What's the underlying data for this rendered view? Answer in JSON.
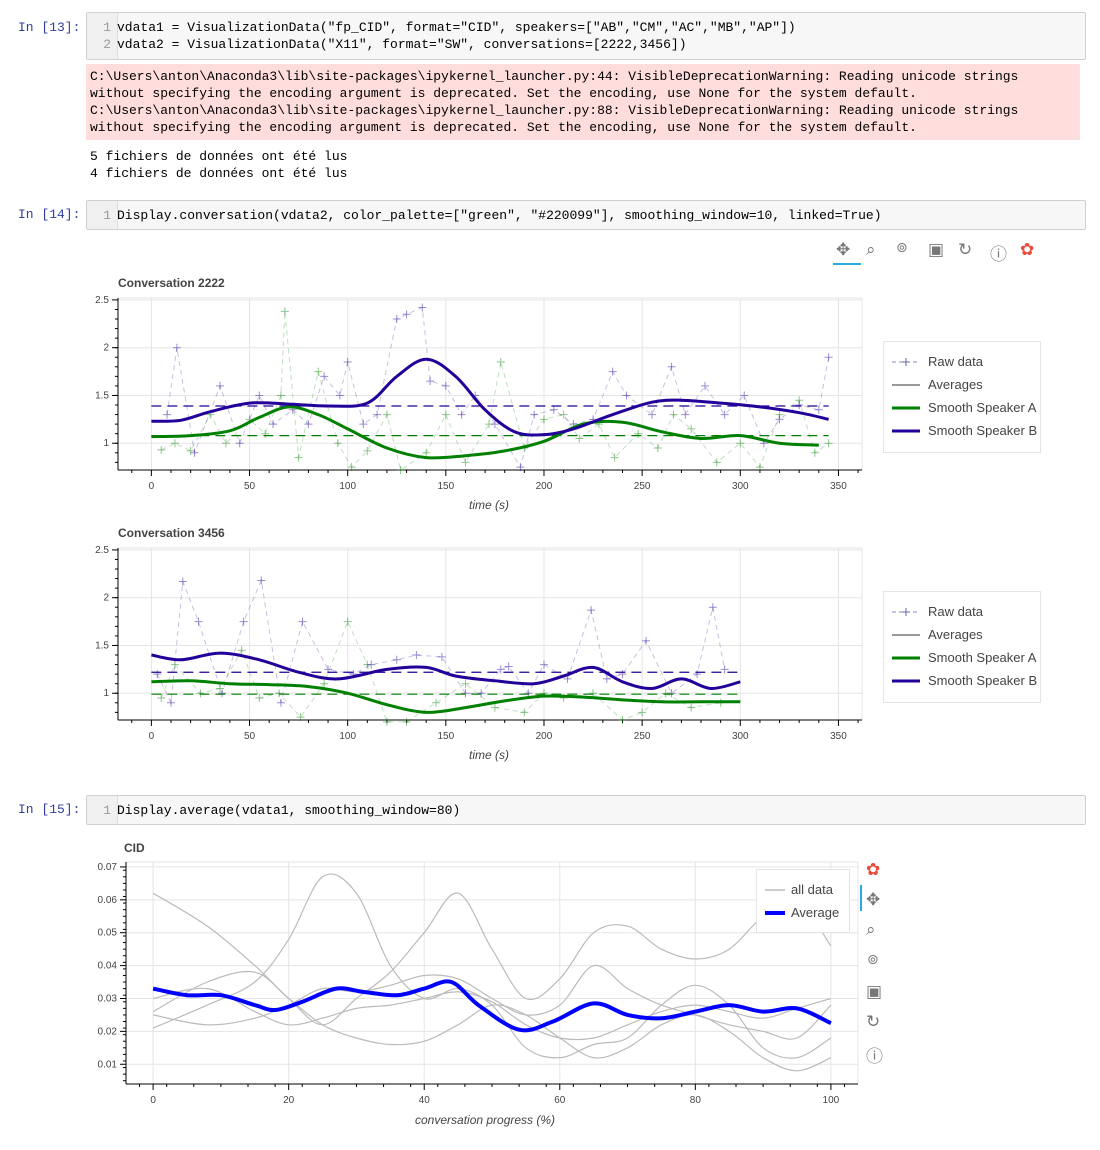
{
  "cells": [
    {
      "prompt": "In [13]:",
      "lines": [
        {
          "num": "1",
          "code": "vdata1 = VisualizationData(\"fp_CID\", format=\"CID\", speakers=[\"AB\",\"CM\",\"AC\",\"MB\",\"AP\"])"
        },
        {
          "num": "2",
          "code": "vdata2 = VisualizationData(\"X11\", format=\"SW\", conversations=[2222,3456])"
        }
      ],
      "stderr": "C:\\Users\\anton\\Anaconda3\\lib\\site-packages\\ipykernel_launcher.py:44: VisibleDeprecationWarning: Reading unicode strings without specifying the encoding argument is deprecated. Set the encoding, use None for the system default.\nC:\\Users\\anton\\Anaconda3\\lib\\site-packages\\ipykernel_launcher.py:88: VisibleDeprecationWarning: Reading unicode strings without specifying the encoding argument is deprecated. Set the encoding, use None for the system default.",
      "stdout": "5 fichiers de données ont été lus\n4 fichiers de données ont été lus"
    },
    {
      "prompt": "In [14]:",
      "lines": [
        {
          "num": "1",
          "code": "Display.conversation(vdata2, color_palette=[\"green\", \"#220099\"], smoothing_window=10, linked=True)"
        }
      ]
    },
    {
      "prompt": "In [15]:",
      "lines": [
        {
          "num": "1",
          "code": "Display.average(vdata1, smoothing_window=80)"
        }
      ]
    }
  ],
  "toolbar_icons": [
    "pan-icon",
    "box-zoom-icon",
    "wheel-zoom-icon",
    "save-icon",
    "reset-icon",
    "help-icon",
    "bokeh-logo-icon"
  ],
  "colors": {
    "speaker_a": "#008000",
    "speaker_b": "#220099",
    "average": "#0000ff",
    "all_data": "#bbbbbb",
    "stderr_bg": "#ffdddd",
    "prompt": "#303f9f"
  },
  "legend_conversation": {
    "raw": "Raw data",
    "averages": "Averages",
    "speaker_a": "Smooth Speaker A",
    "speaker_b": "Smooth Speaker B"
  },
  "legend_average": {
    "all": "all data",
    "average": "Average"
  },
  "chart_data": [
    {
      "type": "line",
      "title": "Conversation 2222",
      "xlabel": "time (s)",
      "ylabel": "",
      "xlim": [
        -17,
        362
      ],
      "ylim": [
        0.72,
        2.52
      ],
      "xticks": [
        0,
        50,
        100,
        150,
        200,
        250,
        300,
        350
      ],
      "yticks": [
        1,
        1.5,
        2,
        2.5
      ],
      "grid": true,
      "legend": "right",
      "series": [
        {
          "name": "Smooth Speaker A",
          "color": "#008000",
          "x": [
            0,
            20,
            40,
            55,
            70,
            85,
            100,
            120,
            140,
            160,
            180,
            200,
            220,
            240,
            260,
            280,
            300,
            320,
            340
          ],
          "y": [
            1.07,
            1.08,
            1.13,
            1.27,
            1.38,
            1.3,
            1.15,
            0.95,
            0.85,
            0.87,
            0.92,
            1.02,
            1.2,
            1.22,
            1.12,
            1.05,
            1.08,
            1.0,
            0.98
          ]
        },
        {
          "name": "Smooth Speaker B",
          "color": "#220099",
          "x": [
            0,
            15,
            30,
            50,
            70,
            90,
            110,
            125,
            140,
            155,
            170,
            185,
            200,
            215,
            235,
            255,
            270,
            290,
            310,
            330,
            345
          ],
          "y": [
            1.23,
            1.24,
            1.33,
            1.42,
            1.41,
            1.39,
            1.42,
            1.7,
            1.88,
            1.7,
            1.35,
            1.12,
            1.09,
            1.15,
            1.3,
            1.43,
            1.45,
            1.42,
            1.38,
            1.32,
            1.25
          ]
        }
      ],
      "averages": [
        {
          "name": "Speaker A",
          "color": "#008000",
          "value": 1.08,
          "x": [
            0,
            345
          ]
        },
        {
          "name": "Speaker B",
          "color": "#220099",
          "value": 1.39,
          "x": [
            0,
            345
          ]
        }
      ],
      "raw": [
        {
          "name": "Speaker A",
          "color": "#008000",
          "x": [
            5,
            12,
            20,
            30,
            38,
            50,
            58,
            66,
            68,
            75,
            85,
            95,
            102,
            110,
            120,
            127,
            140,
            150,
            160,
            172,
            178,
            190,
            200,
            210,
            218,
            228,
            236,
            248,
            258,
            266,
            275,
            288,
            300,
            310,
            320,
            330,
            338,
            345
          ],
          "y": [
            0.93,
            1.0,
            0.92,
            1.3,
            1.0,
            1.25,
            1.1,
            1.5,
            2.38,
            0.85,
            1.75,
            1.0,
            0.75,
            0.92,
            1.3,
            0.72,
            0.9,
            1.3,
            0.8,
            1.2,
            1.85,
            0.95,
            1.25,
            1.3,
            1.05,
            1.2,
            0.85,
            1.1,
            0.95,
            1.3,
            1.15,
            0.8,
            1.0,
            0.75,
            1.3,
            1.45,
            0.9,
            1.0
          ]
        },
        {
          "name": "Speaker B",
          "color": "#220099",
          "x": [
            8,
            13,
            22,
            35,
            45,
            55,
            62,
            72,
            80,
            88,
            96,
            100,
            108,
            115,
            125,
            130,
            138,
            142,
            150,
            158,
            165,
            175,
            188,
            195,
            205,
            215,
            225,
            235,
            242,
            255,
            265,
            272,
            282,
            292,
            302,
            312,
            320,
            330,
            340,
            345
          ],
          "y": [
            1.3,
            2.0,
            0.9,
            1.6,
            1.0,
            1.5,
            1.2,
            1.35,
            1.2,
            1.7,
            1.5,
            1.85,
            1.2,
            1.3,
            2.3,
            2.35,
            2.42,
            1.65,
            1.6,
            1.3,
            1.5,
            1.2,
            0.75,
            1.3,
            1.35,
            1.2,
            1.25,
            1.75,
            1.5,
            1.3,
            1.8,
            1.3,
            1.6,
            1.3,
            1.5,
            1.0,
            1.25,
            1.4,
            1.35,
            1.9
          ]
        }
      ]
    },
    {
      "type": "line",
      "title": "Conversation 3456",
      "xlabel": "time (s)",
      "ylabel": "",
      "xlim": [
        -17,
        362
      ],
      "ylim": [
        0.72,
        2.52
      ],
      "xticks": [
        0,
        50,
        100,
        150,
        200,
        250,
        300,
        350
      ],
      "yticks": [
        1,
        1.5,
        2,
        2.5
      ],
      "grid": true,
      "legend": "right",
      "series": [
        {
          "name": "Smooth Speaker A",
          "color": "#008000",
          "x": [
            0,
            20,
            40,
            60,
            80,
            100,
            120,
            140,
            160,
            180,
            200,
            220,
            240,
            260,
            280,
            300
          ],
          "y": [
            1.12,
            1.13,
            1.1,
            1.09,
            1.07,
            1.0,
            0.88,
            0.8,
            0.85,
            0.92,
            0.97,
            0.96,
            0.93,
            0.91,
            0.91,
            0.91
          ]
        },
        {
          "name": "Smooth Speaker B",
          "color": "#220099",
          "x": [
            0,
            15,
            35,
            55,
            75,
            95,
            120,
            140,
            155,
            175,
            195,
            210,
            225,
            240,
            255,
            270,
            285,
            300
          ],
          "y": [
            1.4,
            1.35,
            1.42,
            1.35,
            1.22,
            1.15,
            1.25,
            1.27,
            1.18,
            1.13,
            1.1,
            1.18,
            1.27,
            1.12,
            1.05,
            1.15,
            1.05,
            1.12
          ]
        }
      ],
      "averages": [
        {
          "name": "Speaker A",
          "color": "#008000",
          "value": 0.99,
          "x": [
            0,
            300
          ]
        },
        {
          "name": "Speaker B",
          "color": "#220099",
          "value": 1.22,
          "x": [
            0,
            300
          ]
        }
      ],
      "raw": [
        {
          "name": "Speaker A",
          "color": "#008000",
          "x": [
            5,
            12,
            25,
            35,
            46,
            55,
            65,
            76,
            88,
            100,
            110,
            120,
            130,
            145,
            160,
            175,
            190,
            200,
            210,
            225,
            240,
            250,
            262,
            275,
            290
          ],
          "y": [
            0.95,
            1.3,
            1.0,
            1.05,
            1.45,
            0.95,
            1.0,
            0.75,
            1.1,
            1.75,
            1.3,
            0.7,
            0.7,
            0.9,
            1.1,
            0.85,
            0.8,
            1.0,
            0.95,
            1.0,
            0.72,
            0.8,
            1.0,
            0.85,
            0.9
          ]
        },
        {
          "name": "Speaker B",
          "color": "#220099",
          "x": [
            3,
            10,
            16,
            24,
            36,
            47,
            56,
            66,
            77,
            90,
            103,
            112,
            125,
            135,
            148,
            160,
            168,
            178,
            182,
            192,
            200,
            212,
            224,
            232,
            240,
            252,
            265,
            278,
            286,
            292
          ],
          "y": [
            1.2,
            0.9,
            2.17,
            1.75,
            1.0,
            1.75,
            2.18,
            0.9,
            1.75,
            1.25,
            1.2,
            1.3,
            1.35,
            1.4,
            1.38,
            1.0,
            1.0,
            1.25,
            1.28,
            1.0,
            1.3,
            1.15,
            1.87,
            1.15,
            1.2,
            1.55,
            1.0,
            1.2,
            1.9,
            1.25
          ]
        }
      ]
    },
    {
      "type": "line",
      "title": "CID",
      "xlabel": "conversation progress (%)",
      "ylabel": "",
      "xlim": [
        -4,
        104
      ],
      "ylim": [
        0.004,
        0.0715
      ],
      "xticks": [
        0,
        20,
        40,
        60,
        80,
        100
      ],
      "yticks": [
        0.01,
        0.02,
        0.03,
        0.04,
        0.05,
        0.06,
        0.07
      ],
      "grid": true,
      "legend": "top-right",
      "series": [
        {
          "name": "Average",
          "color": "#0000ff",
          "x": [
            0,
            5,
            10,
            15,
            18,
            22,
            27,
            31,
            36,
            40,
            44,
            48,
            54,
            59,
            65,
            70,
            75,
            80,
            85,
            90,
            95,
            100
          ],
          "y": [
            0.033,
            0.031,
            0.031,
            0.028,
            0.0265,
            0.029,
            0.033,
            0.032,
            0.031,
            0.033,
            0.035,
            0.028,
            0.0205,
            0.023,
            0.0285,
            0.025,
            0.024,
            0.026,
            0.028,
            0.026,
            0.027,
            0.0225
          ]
        },
        {
          "name": "all data",
          "color": "#bbbbbb",
          "group": "all",
          "x": [
            0,
            8,
            15,
            20,
            25,
            30,
            35,
            40,
            45,
            50,
            55,
            60,
            65,
            70,
            75,
            80,
            85,
            90,
            95,
            100
          ],
          "y": [
            0.062,
            0.052,
            0.04,
            0.03,
            0.022,
            0.03,
            0.038,
            0.05,
            0.062,
            0.045,
            0.03,
            0.036,
            0.05,
            0.052,
            0.045,
            0.042,
            0.045,
            0.055,
            0.06,
            0.046
          ]
        },
        {
          "name": "all data",
          "color": "#bbbbbb",
          "group": "all",
          "x": [
            0,
            8,
            15,
            20,
            25,
            30,
            35,
            40,
            45,
            50,
            55,
            60,
            65,
            70,
            75,
            80,
            85,
            90,
            95,
            100
          ],
          "y": [
            0.021,
            0.028,
            0.035,
            0.048,
            0.067,
            0.062,
            0.04,
            0.03,
            0.033,
            0.028,
            0.015,
            0.012,
            0.016,
            0.018,
            0.028,
            0.034,
            0.028,
            0.015,
            0.012,
            0.018
          ]
        },
        {
          "name": "all data",
          "color": "#bbbbbb",
          "group": "all",
          "x": [
            0,
            8,
            15,
            20,
            25,
            30,
            35,
            40,
            45,
            50,
            55,
            60,
            65,
            70,
            75,
            80,
            85,
            90,
            95,
            100
          ],
          "y": [
            0.026,
            0.035,
            0.038,
            0.03,
            0.022,
            0.018,
            0.016,
            0.017,
            0.022,
            0.028,
            0.025,
            0.018,
            0.012,
            0.015,
            0.022,
            0.025,
            0.02,
            0.012,
            0.008,
            0.012
          ]
        },
        {
          "name": "all data",
          "color": "#bbbbbb",
          "group": "all",
          "x": [
            0,
            8,
            15,
            20,
            25,
            30,
            35,
            40,
            45,
            50,
            55,
            60,
            65,
            70,
            75,
            80,
            85,
            90,
            95,
            100
          ],
          "y": [
            0.025,
            0.022,
            0.024,
            0.028,
            0.033,
            0.032,
            0.034,
            0.037,
            0.036,
            0.03,
            0.025,
            0.028,
            0.04,
            0.033,
            0.028,
            0.025,
            0.022,
            0.02,
            0.018,
            0.028
          ]
        },
        {
          "name": "all data",
          "color": "#bbbbbb",
          "group": "all",
          "x": [
            0,
            8,
            15,
            20,
            25,
            30,
            35,
            40,
            45,
            50,
            55,
            60,
            65,
            70,
            75,
            80,
            85,
            90,
            95,
            100
          ],
          "y": [
            0.03,
            0.033,
            0.026,
            0.022,
            0.024,
            0.027,
            0.028,
            0.03,
            0.032,
            0.029,
            0.022,
            0.018,
            0.018,
            0.022,
            0.026,
            0.028,
            0.026,
            0.024,
            0.027,
            0.03
          ]
        }
      ]
    }
  ]
}
